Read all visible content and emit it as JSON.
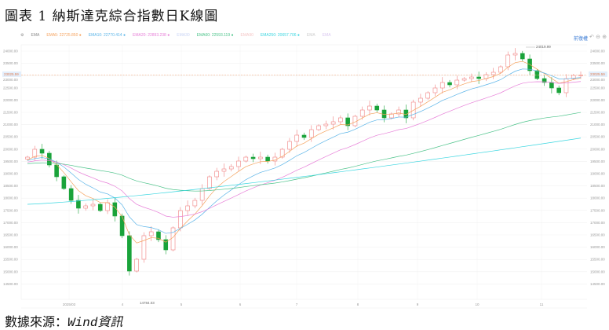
{
  "title": "圖表 1 納斯達克綜合指數日K線圖",
  "footer": {
    "label": "數據來源：",
    "source": "Wind資訊"
  },
  "toolbar": {
    "indicator": "EMA",
    "adjust_label": "前復權",
    "icons": [
      "undo-icon",
      "zoom-out-icon",
      "zoom-in-icon"
    ]
  },
  "legend": [
    {
      "label": "EMA5:",
      "value": "22725.850",
      "color": "#f5a25d"
    },
    {
      "label": "EMA10:",
      "value": "22770.414",
      "color": "#5ab4e8"
    },
    {
      "label": "EMA20:",
      "value": "22893.238",
      "color": "#e77fd8"
    },
    {
      "label": "EMA30",
      "value": "",
      "color": "#c9d4f5"
    },
    {
      "label": "EMA60:",
      "value": "22593.119",
      "color": "#4cc38a"
    },
    {
      "label": "EMA90",
      "value": "",
      "color": "#f5c6c6"
    },
    {
      "label": "EMA250:",
      "value": "20657.706",
      "color": "#39d6e0"
    },
    {
      "label": "EMA",
      "value": "",
      "color": "#ccc"
    },
    {
      "label": "EMA",
      "value": "",
      "color": "#d9c6f0"
    }
  ],
  "chart_data": {
    "type": "candlestick",
    "title": "",
    "x_ticks": [
      "2025/03",
      "4",
      "5",
      "6",
      "7",
      "8",
      "9",
      "10",
      "11"
    ],
    "y_ticks": [
      24000,
      23500,
      23000,
      22500,
      22000,
      21500,
      21000,
      20500,
      20000,
      19500,
      19000,
      18500,
      18000,
      17500,
      17000,
      16500,
      16000,
      15500,
      15000,
      14500
    ],
    "ylim": [
      14200,
      24300
    ],
    "last_price": 23025.59,
    "high_label": "24019.99",
    "low_label": "14784.03",
    "up_color": "#f08080",
    "down_color": "#1aa33a",
    "closes": [
      19673,
      19994,
      19834,
      19353,
      18872,
      18391,
      17910,
      17590,
      17686,
      17750,
      17494,
      17815,
      17270,
      16468,
      15026,
      15507,
      16468,
      16628,
      16308,
      15891,
      16789,
      17494,
      17686,
      17910,
      18391,
      18872,
      19096,
      19192,
      19289,
      19513,
      19673,
      19609,
      19673,
      19513,
      19673,
      19994,
      20314,
      20571,
      20475,
      20795,
      20955,
      21019,
      21116,
      21276,
      20955,
      21340,
      21596,
      21756,
      21596,
      21276,
      21436,
      21596,
      21276,
      21917,
      22077,
      22301,
      22494,
      22718,
      22622,
      22814,
      22878,
      22942,
      22878,
      23038,
      23135,
      23359,
      23840,
      23904,
      23679,
      23199,
      22878,
      22718,
      22494,
      22301,
      22878,
      23006,
      23025.59
    ],
    "ema250_range": [
      17750,
      20450
    ],
    "grid": true
  }
}
